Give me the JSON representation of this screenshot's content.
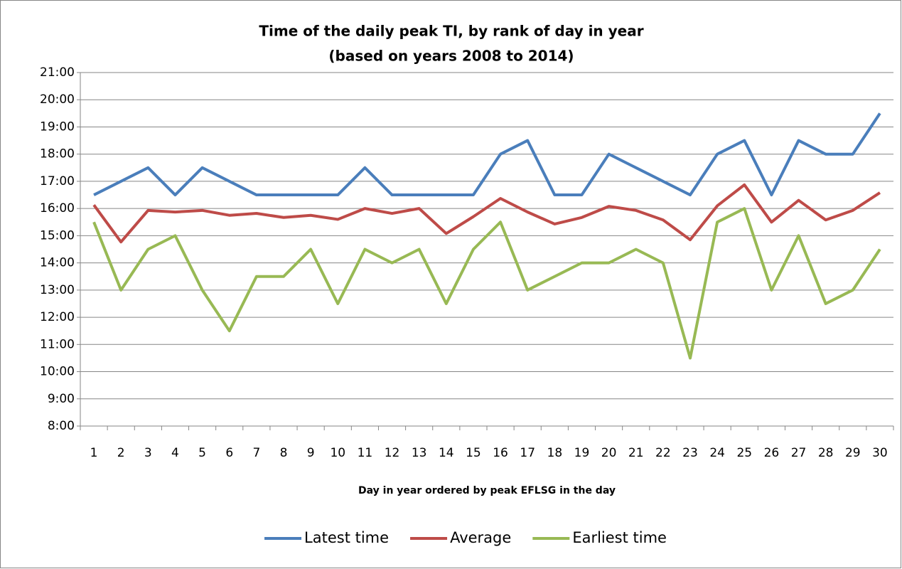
{
  "chart_data": {
    "type": "line",
    "title": "Time of the daily peak TI, by rank of day in year",
    "subtitle": "(based on years 2008 to 2014)",
    "x_label": "Day in year ordered by peak EFLSG in the day",
    "categories": [
      "1",
      "2",
      "3",
      "4",
      "5",
      "6",
      "7",
      "8",
      "9",
      "10",
      "11",
      "12",
      "13",
      "14",
      "15",
      "16",
      "17",
      "18",
      "19",
      "20",
      "21",
      "22",
      "23",
      "24",
      "25",
      "26",
      "27",
      "28",
      "29",
      "30"
    ],
    "series": [
      {
        "name": "Latest time",
        "color": "#4a7ebb",
        "values": [
          16.5,
          17,
          17.5,
          16.5,
          17.5,
          17,
          16.5,
          16.5,
          16.5,
          16.5,
          17.5,
          16.5,
          16.5,
          16.5,
          16.5,
          18,
          18.5,
          16.5,
          16.5,
          18,
          17.5,
          17,
          16.5,
          18,
          18.5,
          16.5,
          18.5,
          18,
          18,
          19.5
        ]
      },
      {
        "name": "Average",
        "color": "#be4b48",
        "values": [
          16.13,
          14.77,
          15.93,
          15.87,
          15.93,
          15.75,
          15.82,
          15.67,
          15.75,
          15.6,
          16,
          15.82,
          16,
          15.08,
          15.7,
          16.37,
          15.87,
          15.43,
          15.67,
          16.08,
          15.93,
          15.58,
          14.85,
          16.1,
          16.87,
          15.5,
          16.3,
          15.58,
          15.93,
          16.58
        ]
      },
      {
        "name": "Earliest time",
        "color": "#98b954",
        "values": [
          15.5,
          13,
          14.5,
          15,
          13,
          11.5,
          13.5,
          13.5,
          14.5,
          12.5,
          14.5,
          14,
          14.5,
          12.5,
          14.5,
          15.5,
          13,
          13.5,
          14,
          14,
          14.5,
          14,
          10.5,
          15.5,
          16,
          13,
          15,
          12.5,
          13,
          14.5
        ]
      }
    ],
    "ylim": [
      8,
      21
    ],
    "yticks": [
      {
        "value": 8,
        "label": "8:00"
      },
      {
        "value": 9,
        "label": "9:00"
      },
      {
        "value": 10,
        "label": "10:00"
      },
      {
        "value": 11,
        "label": "11:00"
      },
      {
        "value": 12,
        "label": "12:00"
      },
      {
        "value": 13,
        "label": "13:00"
      },
      {
        "value": 14,
        "label": "14:00"
      },
      {
        "value": 15,
        "label": "15:00"
      },
      {
        "value": 16,
        "label": "16:00"
      },
      {
        "value": 17,
        "label": "17:00"
      },
      {
        "value": 18,
        "label": "18:00"
      },
      {
        "value": 19,
        "label": "19:00"
      },
      {
        "value": 20,
        "label": "20:00"
      },
      {
        "value": 21,
        "label": "21:00"
      }
    ],
    "grid": true,
    "legend": "bottom"
  }
}
